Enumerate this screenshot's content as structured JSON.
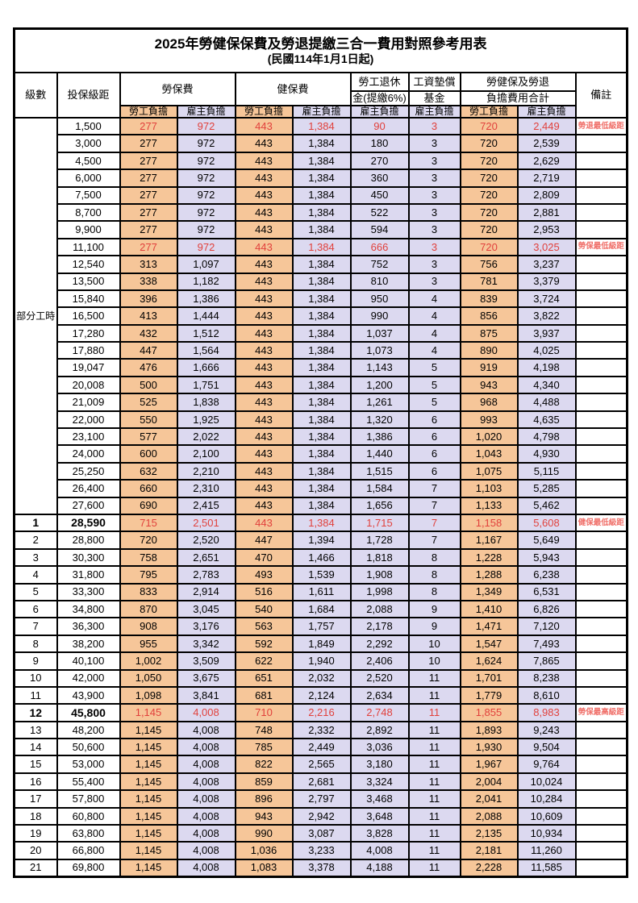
{
  "title": "2025年勞健保保費及勞退提繳三合一費用對照參考用表",
  "subtitle": "(民國114年1月1日起)",
  "colors": {
    "employee_col_bg": "#F6C699",
    "employer_col_bg": "#DCD9F0",
    "highlight_value_red": "#E1413C",
    "remark_red": "#F0706A",
    "border": "#000000"
  },
  "header": {
    "level": "級數",
    "bracket": "投保級距",
    "labor_insurance": "勞保費",
    "health_insurance": "健保費",
    "pension_line1": "勞工退休",
    "pension_line2": "金(提繳6%)",
    "wage_fund_line1": "工資墊償",
    "wage_fund_line2": "基金",
    "total_line1": "勞健保及勞退",
    "total_line2": "負擔費用合計",
    "remark": "備註",
    "employee": "勞工負擔",
    "employer": "雇主負擔"
  },
  "part_time_label": "部分工時",
  "part_time_row_span": 23,
  "rows": [
    {
      "level": "",
      "bracket": "1,500",
      "values": [
        "277",
        "972",
        "443",
        "1,384",
        "90",
        "3",
        "720",
        "2,449"
      ],
      "remark": "勞退最低級距",
      "red": true,
      "bold": false
    },
    {
      "level": "",
      "bracket": "3,000",
      "values": [
        "277",
        "972",
        "443",
        "1,384",
        "180",
        "3",
        "720",
        "2,539"
      ],
      "remark": "",
      "red": false,
      "bold": false
    },
    {
      "level": "",
      "bracket": "4,500",
      "values": [
        "277",
        "972",
        "443",
        "1,384",
        "270",
        "3",
        "720",
        "2,629"
      ],
      "remark": "",
      "red": false,
      "bold": false
    },
    {
      "level": "",
      "bracket": "6,000",
      "values": [
        "277",
        "972",
        "443",
        "1,384",
        "360",
        "3",
        "720",
        "2,719"
      ],
      "remark": "",
      "red": false,
      "bold": false
    },
    {
      "level": "",
      "bracket": "7,500",
      "values": [
        "277",
        "972",
        "443",
        "1,384",
        "450",
        "3",
        "720",
        "2,809"
      ],
      "remark": "",
      "red": false,
      "bold": false
    },
    {
      "level": "",
      "bracket": "8,700",
      "values": [
        "277",
        "972",
        "443",
        "1,384",
        "522",
        "3",
        "720",
        "2,881"
      ],
      "remark": "",
      "red": false,
      "bold": false
    },
    {
      "level": "",
      "bracket": "9,900",
      "values": [
        "277",
        "972",
        "443",
        "1,384",
        "594",
        "3",
        "720",
        "2,953"
      ],
      "remark": "",
      "red": false,
      "bold": false
    },
    {
      "level": "",
      "bracket": "11,100",
      "values": [
        "277",
        "972",
        "443",
        "1,384",
        "666",
        "3",
        "720",
        "3,025"
      ],
      "remark": "勞保最低級距",
      "red": true,
      "bold": false
    },
    {
      "level": "",
      "bracket": "12,540",
      "values": [
        "313",
        "1,097",
        "443",
        "1,384",
        "752",
        "3",
        "756",
        "3,237"
      ],
      "remark": "",
      "red": false,
      "bold": false
    },
    {
      "level": "",
      "bracket": "13,500",
      "values": [
        "338",
        "1,182",
        "443",
        "1,384",
        "810",
        "3",
        "781",
        "3,379"
      ],
      "remark": "",
      "red": false,
      "bold": false
    },
    {
      "level": "",
      "bracket": "15,840",
      "values": [
        "396",
        "1,386",
        "443",
        "1,384",
        "950",
        "4",
        "839",
        "3,724"
      ],
      "remark": "",
      "red": false,
      "bold": false
    },
    {
      "level": "",
      "bracket": "16,500",
      "values": [
        "413",
        "1,444",
        "443",
        "1,384",
        "990",
        "4",
        "856",
        "3,822"
      ],
      "remark": "",
      "red": false,
      "bold": false
    },
    {
      "level": "",
      "bracket": "17,280",
      "values": [
        "432",
        "1,512",
        "443",
        "1,384",
        "1,037",
        "4",
        "875",
        "3,937"
      ],
      "remark": "",
      "red": false,
      "bold": false
    },
    {
      "level": "",
      "bracket": "17,880",
      "values": [
        "447",
        "1,564",
        "443",
        "1,384",
        "1,073",
        "4",
        "890",
        "4,025"
      ],
      "remark": "",
      "red": false,
      "bold": false
    },
    {
      "level": "",
      "bracket": "19,047",
      "values": [
        "476",
        "1,666",
        "443",
        "1,384",
        "1,143",
        "5",
        "919",
        "4,198"
      ],
      "remark": "",
      "red": false,
      "bold": false
    },
    {
      "level": "",
      "bracket": "20,008",
      "values": [
        "500",
        "1,751",
        "443",
        "1,384",
        "1,200",
        "5",
        "943",
        "4,340"
      ],
      "remark": "",
      "red": false,
      "bold": false
    },
    {
      "level": "",
      "bracket": "21,009",
      "values": [
        "525",
        "1,838",
        "443",
        "1,384",
        "1,261",
        "5",
        "968",
        "4,488"
      ],
      "remark": "",
      "red": false,
      "bold": false
    },
    {
      "level": "",
      "bracket": "22,000",
      "values": [
        "550",
        "1,925",
        "443",
        "1,384",
        "1,320",
        "6",
        "993",
        "4,635"
      ],
      "remark": "",
      "red": false,
      "bold": false
    },
    {
      "level": "",
      "bracket": "23,100",
      "values": [
        "577",
        "2,022",
        "443",
        "1,384",
        "1,386",
        "6",
        "1,020",
        "4,798"
      ],
      "remark": "",
      "red": false,
      "bold": false
    },
    {
      "level": "",
      "bracket": "24,000",
      "values": [
        "600",
        "2,100",
        "443",
        "1,384",
        "1,440",
        "6",
        "1,043",
        "4,930"
      ],
      "remark": "",
      "red": false,
      "bold": false
    },
    {
      "level": "",
      "bracket": "25,250",
      "values": [
        "632",
        "2,210",
        "443",
        "1,384",
        "1,515",
        "6",
        "1,075",
        "5,115"
      ],
      "remark": "",
      "red": false,
      "bold": false
    },
    {
      "level": "",
      "bracket": "26,400",
      "values": [
        "660",
        "2,310",
        "443",
        "1,384",
        "1,584",
        "7",
        "1,103",
        "5,285"
      ],
      "remark": "",
      "red": false,
      "bold": false
    },
    {
      "level": "",
      "bracket": "27,600",
      "values": [
        "690",
        "2,415",
        "443",
        "1,384",
        "1,656",
        "7",
        "1,133",
        "5,462"
      ],
      "remark": "",
      "red": false,
      "bold": false
    },
    {
      "level": "1",
      "bracket": "28,590",
      "values": [
        "715",
        "2,501",
        "443",
        "1,384",
        "1,715",
        "7",
        "1,158",
        "5,608"
      ],
      "remark": "健保最低級距",
      "red": true,
      "bold": true
    },
    {
      "level": "2",
      "bracket": "28,800",
      "values": [
        "720",
        "2,520",
        "447",
        "1,394",
        "1,728",
        "7",
        "1,167",
        "5,649"
      ],
      "remark": "",
      "red": false,
      "bold": false
    },
    {
      "level": "3",
      "bracket": "30,300",
      "values": [
        "758",
        "2,651",
        "470",
        "1,466",
        "1,818",
        "8",
        "1,228",
        "5,943"
      ],
      "remark": "",
      "red": false,
      "bold": false
    },
    {
      "level": "4",
      "bracket": "31,800",
      "values": [
        "795",
        "2,783",
        "493",
        "1,539",
        "1,908",
        "8",
        "1,288",
        "6,238"
      ],
      "remark": "",
      "red": false,
      "bold": false
    },
    {
      "level": "5",
      "bracket": "33,300",
      "values": [
        "833",
        "2,914",
        "516",
        "1,611",
        "1,998",
        "8",
        "1,349",
        "6,531"
      ],
      "remark": "",
      "red": false,
      "bold": false
    },
    {
      "level": "6",
      "bracket": "34,800",
      "values": [
        "870",
        "3,045",
        "540",
        "1,684",
        "2,088",
        "9",
        "1,410",
        "6,826"
      ],
      "remark": "",
      "red": false,
      "bold": false
    },
    {
      "level": "7",
      "bracket": "36,300",
      "values": [
        "908",
        "3,176",
        "563",
        "1,757",
        "2,178",
        "9",
        "1,471",
        "7,120"
      ],
      "remark": "",
      "red": false,
      "bold": false
    },
    {
      "level": "8",
      "bracket": "38,200",
      "values": [
        "955",
        "3,342",
        "592",
        "1,849",
        "2,292",
        "10",
        "1,547",
        "7,493"
      ],
      "remark": "",
      "red": false,
      "bold": false
    },
    {
      "level": "9",
      "bracket": "40,100",
      "values": [
        "1,002",
        "3,509",
        "622",
        "1,940",
        "2,406",
        "10",
        "1,624",
        "7,865"
      ],
      "remark": "",
      "red": false,
      "bold": false
    },
    {
      "level": "10",
      "bracket": "42,000",
      "values": [
        "1,050",
        "3,675",
        "651",
        "2,032",
        "2,520",
        "11",
        "1,701",
        "8,238"
      ],
      "remark": "",
      "red": false,
      "bold": false
    },
    {
      "level": "11",
      "bracket": "43,900",
      "values": [
        "1,098",
        "3,841",
        "681",
        "2,124",
        "2,634",
        "11",
        "1,779",
        "8,610"
      ],
      "remark": "",
      "red": false,
      "bold": false
    },
    {
      "level": "12",
      "bracket": "45,800",
      "values": [
        "1,145",
        "4,008",
        "710",
        "2,216",
        "2,748",
        "11",
        "1,855",
        "8,983"
      ],
      "remark": "勞保最高級距",
      "red": true,
      "bold": true
    },
    {
      "level": "13",
      "bracket": "48,200",
      "values": [
        "1,145",
        "4,008",
        "748",
        "2,332",
        "2,892",
        "11",
        "1,893",
        "9,243"
      ],
      "remark": "",
      "red": false,
      "bold": false
    },
    {
      "level": "14",
      "bracket": "50,600",
      "values": [
        "1,145",
        "4,008",
        "785",
        "2,449",
        "3,036",
        "11",
        "1,930",
        "9,504"
      ],
      "remark": "",
      "red": false,
      "bold": false
    },
    {
      "level": "15",
      "bracket": "53,000",
      "values": [
        "1,145",
        "4,008",
        "822",
        "2,565",
        "3,180",
        "11",
        "1,967",
        "9,764"
      ],
      "remark": "",
      "red": false,
      "bold": false
    },
    {
      "level": "16",
      "bracket": "55,400",
      "values": [
        "1,145",
        "4,008",
        "859",
        "2,681",
        "3,324",
        "11",
        "2,004",
        "10,024"
      ],
      "remark": "",
      "red": false,
      "bold": false
    },
    {
      "level": "17",
      "bracket": "57,800",
      "values": [
        "1,145",
        "4,008",
        "896",
        "2,797",
        "3,468",
        "11",
        "2,041",
        "10,284"
      ],
      "remark": "",
      "red": false,
      "bold": false
    },
    {
      "level": "18",
      "bracket": "60,800",
      "values": [
        "1,145",
        "4,008",
        "943",
        "2,942",
        "3,648",
        "11",
        "2,088",
        "10,609"
      ],
      "remark": "",
      "red": false,
      "bold": false
    },
    {
      "level": "19",
      "bracket": "63,800",
      "values": [
        "1,145",
        "4,008",
        "990",
        "3,087",
        "3,828",
        "11",
        "2,135",
        "10,934"
      ],
      "remark": "",
      "red": false,
      "bold": false
    },
    {
      "level": "20",
      "bracket": "66,800",
      "values": [
        "1,145",
        "4,008",
        "1,036",
        "3,233",
        "4,008",
        "11",
        "2,181",
        "11,260"
      ],
      "remark": "",
      "red": false,
      "bold": false
    },
    {
      "level": "21",
      "bracket": "69,800",
      "values": [
        "1,145",
        "4,008",
        "1,083",
        "3,378",
        "4,188",
        "11",
        "2,228",
        "11,585"
      ],
      "remark": "",
      "red": false,
      "bold": false
    }
  ]
}
